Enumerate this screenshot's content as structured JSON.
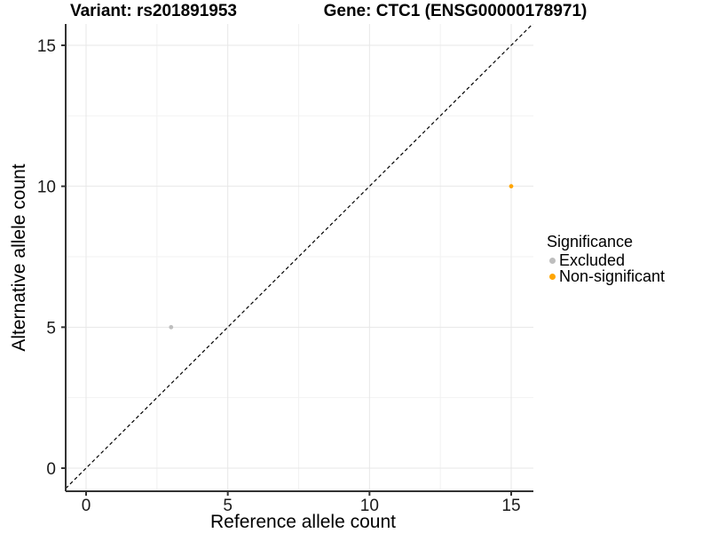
{
  "chart_data": {
    "type": "scatter",
    "title_left": "Variant: rs201891953",
    "title_right": "Gene: CTC1 (ENSG00000178971)",
    "xlabel": "Reference allele count",
    "ylabel": "Alternative allele count",
    "xlim": [
      0,
      15
    ],
    "ylim": [
      0,
      15
    ],
    "x_ticks": [
      0,
      5,
      10,
      15
    ],
    "y_ticks": [
      0,
      5,
      10,
      15
    ],
    "x_minor_ticks": [
      2.5,
      7.5,
      12.5
    ],
    "y_minor_ticks": [
      2.5,
      7.5,
      12.5
    ],
    "grid": true,
    "identity_line": {
      "slope": 1,
      "intercept": 0,
      "style": "dashed",
      "color": "#000000"
    },
    "series": [
      {
        "name": "Excluded",
        "color": "#BEBEBE",
        "points": [
          {
            "x": 3,
            "y": 5
          }
        ]
      },
      {
        "name": "Non-significant",
        "color": "#FFA500",
        "points": [
          {
            "x": 15,
            "y": 10
          }
        ]
      }
    ],
    "legend": {
      "title": "Significance",
      "position": "right"
    }
  }
}
